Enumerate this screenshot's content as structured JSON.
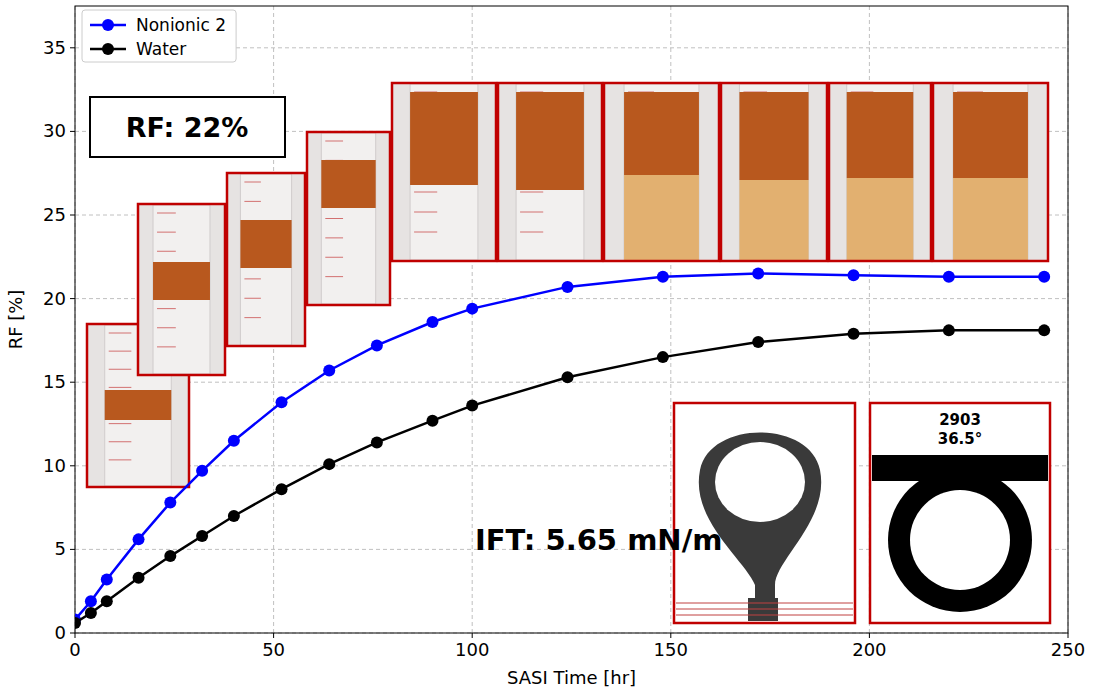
{
  "chart_data": {
    "type": "line",
    "xlabel": "SASI Time [hr]",
    "ylabel": "RF [%]",
    "x": [
      0,
      4,
      8,
      16,
      24,
      32,
      40,
      52,
      64,
      76,
      90,
      100,
      124,
      148,
      172,
      196,
      220,
      244
    ],
    "series": [
      {
        "name": "Nonionic 2",
        "color": "#0000ff",
        "marker": "circle",
        "line_style": "solid",
        "values": [
          0.8,
          1.9,
          3.2,
          5.6,
          7.8,
          9.7,
          11.5,
          13.8,
          15.7,
          17.2,
          18.6,
          19.4,
          20.7,
          21.3,
          21.5,
          21.4,
          21.3,
          21.3
        ]
      },
      {
        "name": "Water",
        "color": "#000000",
        "marker": "circle",
        "line_style": "solid",
        "values": [
          0.6,
          1.2,
          1.9,
          3.3,
          4.6,
          5.8,
          7.0,
          8.6,
          10.1,
          11.4,
          12.7,
          13.6,
          15.3,
          16.5,
          17.4,
          17.9,
          18.1,
          18.1
        ]
      }
    ],
    "xlim": [
      0,
      250
    ],
    "ylim": [
      0,
      37.5
    ],
    "xticks": [
      0,
      50,
      100,
      150,
      200,
      250
    ],
    "yticks": [
      0,
      5,
      10,
      15,
      20,
      25,
      30,
      35
    ],
    "grid": true,
    "legend": "upper left",
    "annotations": [
      "RF: 22%",
      "IFT: 5.65 mN/m",
      "2903",
      "36.5°"
    ]
  }
}
